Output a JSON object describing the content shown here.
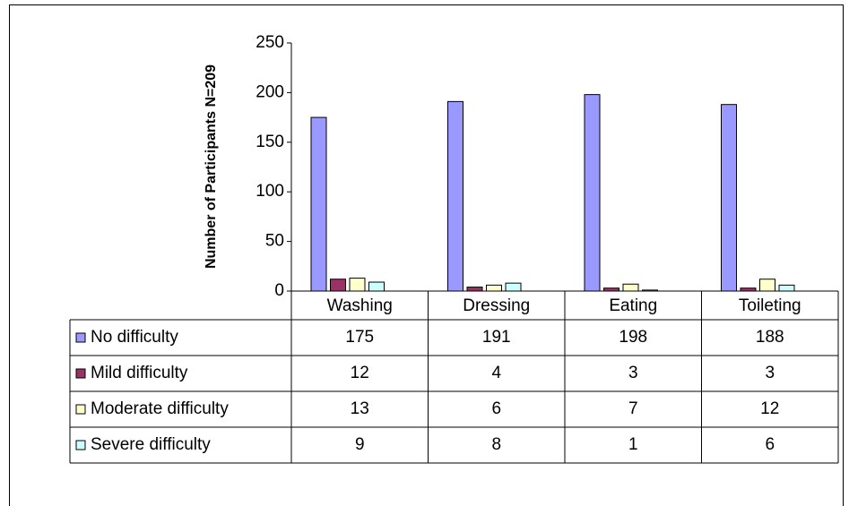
{
  "chart_data": {
    "type": "bar",
    "y_label": "Number of Participants N=209",
    "categories": [
      "Washing",
      "Dressing",
      "Eating",
      "Toileting"
    ],
    "series": [
      {
        "name": "No difficulty",
        "color": "#9999ff",
        "values": [
          175,
          191,
          198,
          188
        ]
      },
      {
        "name": "Mild difficulty",
        "color": "#993366",
        "values": [
          12,
          4,
          3,
          3
        ]
      },
      {
        "name": "Moderate difficulty",
        "color": "#ffffcc",
        "values": [
          13,
          6,
          7,
          12
        ]
      },
      {
        "name": "Severe difficulty",
        "color": "#ccffff",
        "values": [
          9,
          8,
          1,
          6
        ]
      }
    ],
    "ylim": [
      0,
      250
    ],
    "yticks": [
      0,
      50,
      100,
      150,
      200,
      250
    ],
    "grid": false,
    "legend": "table"
  }
}
